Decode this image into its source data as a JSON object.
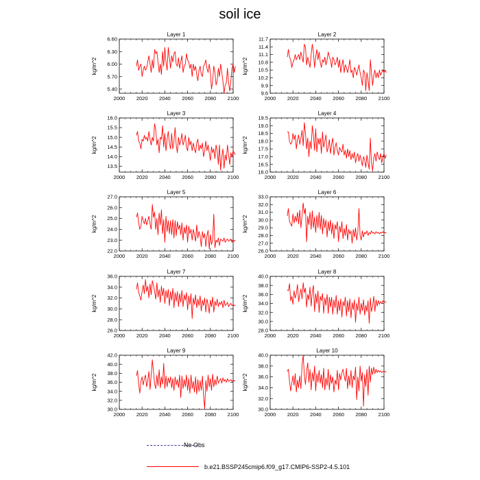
{
  "title": "soil ice",
  "colors": {
    "series": "#ff0000",
    "noobs": "#3a3aa0",
    "axis": "#000000"
  },
  "legend": {
    "noobs_label": "No Obs",
    "case_label": "b.e21.BSSP245cmip6.f09_g17.CMIP6-SSP2-4.5.101"
  },
  "chart_data": [
    {
      "type": "line",
      "title": "Layer 1",
      "ylabel": "kg/m^2",
      "xlim": [
        2000,
        2100
      ],
      "xticks": [
        "2000",
        "2020",
        "2040",
        "2060",
        "2080",
        "2100"
      ],
      "ylim": [
        5.3,
        6.6
      ],
      "yticks": [
        "5.40",
        "5.70",
        "6.00",
        "6.30",
        "6.60"
      ],
      "x_start": 2015,
      "values": [
        5.95,
        6.1,
        5.85,
        5.95,
        6.0,
        5.7,
        5.85,
        5.95,
        5.85,
        5.9,
        6.05,
        6.2,
        6.0,
        5.8,
        6.1,
        5.9,
        6.35,
        6.25,
        6.3,
        6.05,
        5.8,
        6.0,
        5.75,
        6.3,
        5.95,
        6.4,
        6.05,
        5.85,
        6.4,
        6.15,
        5.9,
        6.2,
        6.05,
        6.25,
        6.3,
        6.0,
        5.95,
        6.15,
        5.9,
        6.05,
        6.2,
        5.8,
        5.95,
        6.0,
        6.25,
        6.1,
        6.05,
        5.9,
        6.0,
        5.7,
        6.0,
        5.85,
        5.95,
        5.75,
        5.6,
        5.85,
        5.95,
        5.75,
        5.7,
        5.95,
        6.0,
        6.1,
        5.9,
        5.8,
        6.0,
        5.8,
        5.4,
        5.6,
        5.95,
        5.8,
        5.5,
        5.6,
        5.9,
        5.7,
        6.0,
        5.8,
        5.6,
        5.3,
        5.5,
        5.55,
        5.9,
        5.55,
        5.35,
        5.6,
        5.9,
        6.0,
        5.8,
        5.95
      ]
    },
    {
      "type": "line",
      "title": "Layer 2",
      "ylabel": "kg/m^2",
      "xlim": [
        2000,
        2100
      ],
      "xticks": [
        "2000",
        "2020",
        "2040",
        "2060",
        "2080",
        "2100"
      ],
      "ylim": [
        9.6,
        11.7
      ],
      "yticks": [
        "9.6",
        "9.9",
        "10.2",
        "10.5",
        "10.8",
        "11.1",
        "11.4",
        "11.7"
      ],
      "x_start": 2015,
      "values": [
        11.0,
        11.3,
        11.0,
        10.9,
        10.6,
        10.8,
        10.9,
        11.1,
        10.9,
        11.0,
        11.1,
        10.9,
        11.2,
        11.0,
        10.8,
        11.5,
        11.4,
        10.7,
        11.0,
        10.8,
        10.6,
        11.1,
        11.5,
        11.2,
        10.6,
        11.0,
        11.3,
        10.9,
        11.2,
        10.8,
        10.6,
        10.9,
        10.8,
        11.0,
        10.7,
        10.9,
        11.2,
        11.0,
        10.9,
        10.6,
        11.0,
        10.9,
        10.7,
        10.8,
        11.0,
        10.6,
        10.9,
        10.4,
        10.7,
        10.9,
        10.4,
        10.7,
        10.6,
        10.4,
        10.6,
        10.9,
        10.4,
        10.5,
        10.2,
        10.6,
        10.5,
        10.3,
        10.5,
        10.7,
        10.4,
        10.2,
        9.9,
        10.5,
        10.4,
        9.7,
        10.4,
        10.1,
        9.7,
        10.9,
        10.4,
        9.9,
        10.3,
        10.5,
        10.2,
        10.4,
        10.2,
        10.5,
        10.3,
        10.4,
        10.5,
        10.4,
        10.5,
        10.4
      ]
    },
    {
      "type": "line",
      "title": "Layer 3",
      "ylabel": "kg/m^2",
      "xlim": [
        2000,
        2100
      ],
      "xticks": [
        "2000",
        "2020",
        "2040",
        "2060",
        "2080",
        "2100"
      ],
      "ylim": [
        13.2,
        16.0
      ],
      "yticks": [
        "13.5",
        "14.0",
        "14.5",
        "15.0",
        "15.5",
        "16.0"
      ],
      "x_start": 2015,
      "values": [
        15.1,
        15.3,
        14.8,
        14.7,
        14.4,
        14.9,
        14.8,
        15.1,
        14.9,
        15.0,
        14.8,
        15.3,
        14.9,
        14.6,
        15.0,
        14.8,
        15.7,
        15.4,
        14.6,
        14.9,
        14.2,
        15.0,
        14.9,
        15.6,
        14.5,
        15.2,
        14.3,
        14.9,
        15.3,
        14.7,
        14.4,
        15.2,
        14.4,
        14.8,
        15.5,
        14.6,
        14.2,
        15.0,
        14.6,
        14.8,
        15.2,
        14.6,
        14.8,
        15.1,
        14.5,
        14.3,
        15.0,
        14.6,
        14.8,
        14.3,
        14.7,
        14.4,
        14.2,
        14.7,
        14.9,
        14.3,
        14.6,
        14.4,
        14.7,
        14.0,
        14.3,
        14.8,
        14.3,
        14.6,
        14.2,
        13.8,
        14.5,
        14.2,
        14.4,
        13.9,
        14.6,
        14.3,
        13.6,
        14.6,
        13.3,
        14.0,
        14.4,
        13.4,
        14.1,
        13.8,
        14.6,
        14.1,
        13.6,
        14.2,
        14.0,
        14.3,
        14.2,
        14.1
      ]
    },
    {
      "type": "line",
      "title": "Layer 4",
      "ylabel": "kg/m^2",
      "xlim": [
        2000,
        2100
      ],
      "xticks": [
        "2000",
        "2020",
        "2040",
        "2060",
        "2080",
        "2100"
      ],
      "ylim": [
        16.0,
        19.5
      ],
      "yticks": [
        "16.0",
        "16.5",
        "17.0",
        "17.5",
        "18.0",
        "18.5",
        "19.0",
        "19.5"
      ],
      "x_start": 2015,
      "values": [
        18.6,
        18.6,
        18.0,
        17.8,
        17.9,
        18.5,
        18.1,
        18.4,
        17.5,
        18.1,
        18.4,
        17.8,
        18.2,
        18.7,
        17.7,
        19.2,
        18.5,
        17.5,
        18.2,
        17.0,
        18.0,
        17.5,
        19.0,
        18.4,
        17.4,
        18.8,
        17.3,
        18.2,
        17.8,
        18.2,
        17.2,
        18.6,
        17.6,
        18.0,
        18.4,
        17.3,
        17.6,
        18.1,
        17.2,
        17.8,
        18.2,
        17.1,
        17.6,
        17.9,
        17.4,
        17.1,
        17.6,
        17.4,
        17.3,
        17.8,
        17.1,
        17.4,
        16.9,
        17.5,
        17.0,
        17.4,
        16.8,
        17.2,
        16.9,
        17.3,
        16.6,
        17.0,
        17.2,
        16.7,
        17.1,
        16.8,
        16.4,
        17.0,
        16.8,
        16.3,
        17.1,
        16.6,
        16.2,
        18.2,
        16.6,
        16.1,
        16.9,
        17.2,
        16.7,
        17.3,
        17.0,
        16.8,
        17.2,
        16.6,
        17.0,
        17.2,
        16.9,
        17.1
      ]
    },
    {
      "type": "line",
      "title": "Layer 5",
      "ylabel": "kg/m^2",
      "xlim": [
        2000,
        2100
      ],
      "xticks": [
        "2000",
        "2020",
        "2040",
        "2060",
        "2080",
        "2100"
      ],
      "ylim": [
        22.0,
        27.0
      ],
      "yticks": [
        "22.0",
        "23.0",
        "24.0",
        "25.0",
        "26.0",
        "27.0"
      ],
      "x_start": 2015,
      "values": [
        25.1,
        25.5,
        24.6,
        24.0,
        24.3,
        25.2,
        24.8,
        24.5,
        25.0,
        24.4,
        24.8,
        25.2,
        24.5,
        24.0,
        26.3,
        25.1,
        25.6,
        24.0,
        25.0,
        23.5,
        25.5,
        24.4,
        25.8,
        23.6,
        24.9,
        22.8,
        25.2,
        23.8,
        24.8,
        23.6,
        24.8,
        23.5,
        24.9,
        23.2,
        24.8,
        23.4,
        24.7,
        24.0,
        24.4,
        23.5,
        24.6,
        23.0,
        24.2,
        23.6,
        24.4,
        22.8,
        24.3,
        23.6,
        24.0,
        23.0,
        24.0,
        23.5,
        22.9,
        24.4,
        23.2,
        23.8,
        23.4,
        22.4,
        23.8,
        23.2,
        23.6,
        22.4,
        23.4,
        23.9,
        22.2,
        23.5,
        22.6,
        23.0,
        25.4,
        22.3,
        23.0,
        22.8,
        23.2,
        22.5,
        23.1,
        23.0,
        22.9,
        23.2,
        22.8,
        23.0,
        23.1,
        22.9,
        23.0,
        23.1,
        22.8,
        23.0,
        22.9,
        23.0
      ]
    },
    {
      "type": "line",
      "title": "Layer 6",
      "ylabel": "kg/m^2",
      "xlim": [
        2000,
        2100
      ],
      "xticks": [
        "2000",
        "2020",
        "2040",
        "2060",
        "2080",
        "2100"
      ],
      "ylim": [
        26.0,
        33.0
      ],
      "yticks": [
        "26.0",
        "27.0",
        "28.0",
        "29.0",
        "30.0",
        "31.0",
        "32.0",
        "33.0"
      ],
      "x_start": 2015,
      "values": [
        30.5,
        31.5,
        29.8,
        29.5,
        29.2,
        30.8,
        29.6,
        30.5,
        29.8,
        31.0,
        29.5,
        31.3,
        29.0,
        30.6,
        32.2,
        30.8,
        31.5,
        27.2,
        30.5,
        29.4,
        31.0,
        28.8,
        31.2,
        29.0,
        30.4,
        28.4,
        30.6,
        29.0,
        31.0,
        28.8,
        30.6,
        28.2,
        30.2,
        29.0,
        30.0,
        27.8,
        29.8,
        28.6,
        30.0,
        28.2,
        29.6,
        27.6,
        29.4,
        28.8,
        29.8,
        27.2,
        29.2,
        28.4,
        29.8,
        27.6,
        28.9,
        28.0,
        29.4,
        27.4,
        28.8,
        28.2,
        28.6,
        27.0,
        28.8,
        27.8,
        29.0,
        27.4,
        28.4,
        31.5,
        28.0,
        27.4,
        28.6,
        27.8,
        28.4,
        28.2,
        28.6,
        28.0,
        28.4,
        28.2,
        28.6,
        28.3,
        28.4,
        28.2,
        28.5,
        28.3,
        28.4,
        28.2,
        28.4,
        28.3,
        28.5,
        28.3,
        28.4,
        28.3
      ]
    },
    {
      "type": "line",
      "title": "Layer 7",
      "ylabel": "kg/m^2",
      "xlim": [
        2000,
        2100
      ],
      "xticks": [
        "2000",
        "2020",
        "2040",
        "2060",
        "2080",
        "2100"
      ],
      "ylim": [
        26.0,
        36.0
      ],
      "yticks": [
        "26.0",
        "28.0",
        "30.0",
        "32.0",
        "34.0",
        "36.0"
      ],
      "x_start": 2015,
      "values": [
        33.6,
        34.8,
        33.0,
        32.4,
        31.6,
        33.2,
        34.4,
        32.8,
        35.4,
        33.2,
        34.2,
        32.0,
        34.6,
        32.6,
        35.2,
        34.4,
        33.2,
        31.8,
        34.8,
        32.2,
        33.6,
        31.2,
        34.2,
        32.4,
        33.8,
        31.0,
        33.4,
        32.0,
        33.6,
        30.6,
        33.2,
        31.6,
        33.8,
        30.2,
        33.0,
        31.4,
        33.2,
        30.4,
        32.8,
        31.2,
        33.4,
        30.4,
        32.6,
        31.6,
        33.0,
        29.8,
        32.4,
        30.8,
        32.8,
        28.2,
        32.0,
        30.8,
        32.6,
        30.2,
        31.8,
        30.6,
        32.4,
        29.6,
        31.6,
        30.6,
        32.0,
        29.4,
        31.8,
        30.8,
        29.2,
        31.6,
        30.4,
        32.2,
        29.4,
        31.4,
        30.6,
        31.8,
        30.4,
        31.2,
        30.8,
        31.4,
        30.2,
        31.6,
        30.6,
        30.8,
        31.2,
        30.4,
        30.8,
        31.0,
        30.6,
        30.8,
        30.6,
        30.7
      ]
    },
    {
      "type": "line",
      "title": "Layer 8",
      "ylabel": "kg/m^2",
      "xlim": [
        2000,
        2100
      ],
      "xticks": [
        "2000",
        "2020",
        "2040",
        "2060",
        "2080",
        "2100"
      ],
      "ylim": [
        28.0,
        40.0
      ],
      "yticks": [
        "28.0",
        "30.0",
        "32.0",
        "34.0",
        "36.0",
        "38.0",
        "40.0"
      ],
      "x_start": 2015,
      "values": [
        37.0,
        36.8,
        38.4,
        34.6,
        35.6,
        33.8,
        36.8,
        35.2,
        36.2,
        38.2,
        34.4,
        36.0,
        37.2,
        35.0,
        38.6,
        36.4,
        37.4,
        33.2,
        36.0,
        34.8,
        37.6,
        33.4,
        36.6,
        38.0,
        32.2,
        36.2,
        34.0,
        36.8,
        32.0,
        35.6,
        34.6,
        36.2,
        31.8,
        35.2,
        33.6,
        36.0,
        31.8,
        35.4,
        33.2,
        35.4,
        31.6,
        34.8,
        33.0,
        35.8,
        31.6,
        34.6,
        32.4,
        35.0,
        31.0,
        34.4,
        33.4,
        35.4,
        31.2,
        34.6,
        32.2,
        35.0,
        30.8,
        34.2,
        32.6,
        34.8,
        29.8,
        34.0,
        32.4,
        35.4,
        31.6,
        34.0,
        32.4,
        34.8,
        31.4,
        33.6,
        32.2,
        34.6,
        29.6,
        35.2,
        32.2,
        33.4,
        35.6,
        32.2,
        34.8,
        33.4,
        34.6,
        33.8,
        34.4,
        34.0,
        34.6,
        34.2,
        34.4,
        34.3
      ]
    },
    {
      "type": "line",
      "title": "Layer 9",
      "ylabel": "kg/m^2",
      "xlim": [
        2000,
        2100
      ],
      "xticks": [
        "2000",
        "2020",
        "2040",
        "2060",
        "2080",
        "2100"
      ],
      "ylim": [
        30.0,
        42.0
      ],
      "yticks": [
        "30.0",
        "32.0",
        "34.0",
        "36.0",
        "38.0",
        "40.0",
        "42.0"
      ],
      "x_start": 2015,
      "values": [
        37.4,
        38.6,
        35.6,
        33.6,
        36.2,
        37.2,
        35.4,
        36.8,
        37.6,
        35.0,
        36.4,
        38.4,
        34.4,
        37.6,
        41.0,
        38.4,
        35.6,
        34.6,
        37.6,
        35.2,
        38.8,
        34.8,
        37.2,
        35.6,
        40.2,
        34.6,
        37.4,
        35.0,
        37.0,
        35.8,
        37.2,
        34.8,
        36.8,
        34.2,
        37.2,
        35.4,
        36.6,
        34.8,
        37.6,
        32.6,
        37.4,
        34.6,
        36.6,
        35.0,
        37.6,
        34.2,
        36.8,
        33.6,
        37.6,
        34.6,
        36.2,
        33.8,
        37.2,
        33.4,
        36.6,
        34.0,
        36.4,
        34.2,
        37.4,
        33.0,
        30.2,
        36.4,
        34.0,
        37.6,
        35.0,
        36.8,
        34.2,
        37.8,
        35.0,
        36.6,
        35.4,
        37.4,
        35.8,
        36.4,
        36.8,
        35.8,
        37.0,
        36.2,
        36.6,
        36.0,
        36.8,
        36.2,
        36.4,
        36.6,
        36.2,
        36.5,
        36.3,
        36.4
      ]
    },
    {
      "type": "line",
      "title": "Layer 10",
      "ylabel": "kg/m^2",
      "xlim": [
        2000,
        2100
      ],
      "xticks": [
        "2000",
        "2020",
        "2040",
        "2060",
        "2080",
        "2100"
      ],
      "ylim": [
        30.0,
        40.0
      ],
      "yticks": [
        "30.0",
        "32.0",
        "34.0",
        "36.0",
        "38.0",
        "40.0"
      ],
      "x_start": 2015,
      "values": [
        37.0,
        37.4,
        35.2,
        33.4,
        34.8,
        36.2,
        34.4,
        36.6,
        33.2,
        35.4,
        34.0,
        36.2,
        33.8,
        38.2,
        40.0,
        36.4,
        34.6,
        37.0,
        38.6,
        35.0,
        37.4,
        33.6,
        36.8,
        35.2,
        38.0,
        33.4,
        36.6,
        35.0,
        37.2,
        34.8,
        36.4,
        34.0,
        37.6,
        33.6,
        35.8,
        34.4,
        37.4,
        33.6,
        36.4,
        34.8,
        36.0,
        33.2,
        35.4,
        34.6,
        37.2,
        33.6,
        36.6,
        35.4,
        36.8,
        37.4,
        36.2,
        35.2,
        37.6,
        33.8,
        36.2,
        34.4,
        37.2,
        34.0,
        36.2,
        35.4,
        37.8,
        31.8,
        36.0,
        33.4,
        38.0,
        35.2,
        36.8,
        30.6,
        36.4,
        34.2,
        37.4,
        32.6,
        38.0,
        35.0,
        37.6,
        36.4,
        37.8,
        36.6,
        37.4,
        36.8,
        37.2,
        36.9,
        37.1,
        36.8,
        37.0,
        36.9,
        37.0,
        36.9
      ]
    }
  ]
}
